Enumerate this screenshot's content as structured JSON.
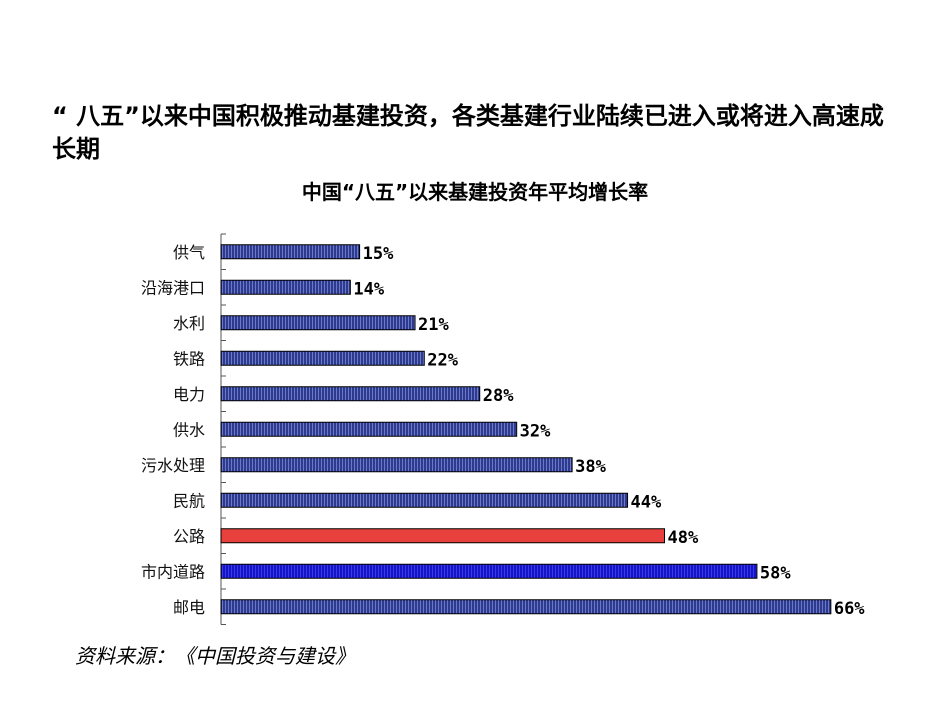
{
  "headline": "“ 八五”以来中国积极推动基建投资，各类基建行业陆续已进入或将进入高速成长期",
  "source": "资料来源：《中国投资与建设》",
  "colors": {
    "default_bar": "#2d3b8f",
    "highlight_bar": "#e8403c",
    "accent_bar": "#1515c8",
    "axis": "#555555"
  },
  "chart_data": {
    "type": "bar",
    "orientation": "horizontal",
    "title": "中国“八五”以来基建投资年平均增长率",
    "xlabel": "",
    "ylabel": "",
    "xlim": [
      0,
      66
    ],
    "grid": false,
    "legend": "none",
    "categories": [
      "供气",
      "沿海港口",
      "水利",
      "铁路",
      "电力",
      "供水",
      "污水处理",
      "民航",
      "公路",
      "市内道路",
      "邮电"
    ],
    "values": [
      15,
      14,
      21,
      22,
      28,
      32,
      38,
      44,
      48,
      58,
      66
    ],
    "value_labels": [
      "15%",
      "14%",
      "21%",
      "22%",
      "28%",
      "32%",
      "38%",
      "44%",
      "48%",
      "58%",
      "66%"
    ],
    "bar_colors": [
      "default",
      "default",
      "default",
      "default",
      "default",
      "default",
      "default",
      "default",
      "highlight",
      "accent",
      "default"
    ]
  }
}
